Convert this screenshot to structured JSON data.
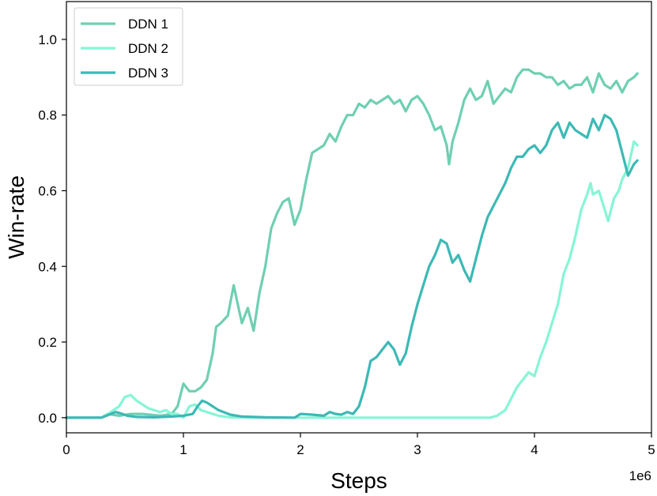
{
  "chart_data": {
    "type": "line",
    "xlabel": "Steps",
    "ylabel": "Win-rate",
    "x_offset_label": "1e6",
    "xlim": [
      0,
      5
    ],
    "ylim": [
      -0.04,
      1.1
    ],
    "xticks": [
      0,
      1,
      2,
      3,
      4,
      5
    ],
    "xtick_labels": [
      "0",
      "1",
      "2",
      "3",
      "4",
      "5"
    ],
    "yticks": [
      0.0,
      0.2,
      0.4,
      0.6,
      0.8,
      1.0
    ],
    "ytick_labels": [
      "0.0",
      "0.2",
      "0.4",
      "0.6",
      "0.8",
      "1.0"
    ],
    "grid": false,
    "legend_position": "top-left",
    "series": [
      {
        "name": "DDN 1",
        "color": "#6fcfb2",
        "points": [
          [
            0,
            0
          ],
          [
            0.3,
            0
          ],
          [
            0.35,
            0.01
          ],
          [
            0.45,
            0.005
          ],
          [
            0.55,
            0.01
          ],
          [
            0.65,
            0.01
          ],
          [
            0.8,
            0.005
          ],
          [
            0.9,
            0.01
          ],
          [
            0.95,
            0.03
          ],
          [
            1.0,
            0.09
          ],
          [
            1.05,
            0.07
          ],
          [
            1.1,
            0.07
          ],
          [
            1.15,
            0.08
          ],
          [
            1.2,
            0.1
          ],
          [
            1.25,
            0.17
          ],
          [
            1.28,
            0.24
          ],
          [
            1.32,
            0.25
          ],
          [
            1.38,
            0.27
          ],
          [
            1.43,
            0.35
          ],
          [
            1.45,
            0.32
          ],
          [
            1.5,
            0.25
          ],
          [
            1.55,
            0.29
          ],
          [
            1.6,
            0.23
          ],
          [
            1.65,
            0.33
          ],
          [
            1.7,
            0.4
          ],
          [
            1.75,
            0.5
          ],
          [
            1.8,
            0.54
          ],
          [
            1.85,
            0.57
          ],
          [
            1.9,
            0.58
          ],
          [
            1.95,
            0.51
          ],
          [
            2.0,
            0.55
          ],
          [
            2.05,
            0.63
          ],
          [
            2.1,
            0.7
          ],
          [
            2.15,
            0.71
          ],
          [
            2.2,
            0.72
          ],
          [
            2.25,
            0.75
          ],
          [
            2.3,
            0.73
          ],
          [
            2.35,
            0.77
          ],
          [
            2.4,
            0.8
          ],
          [
            2.45,
            0.8
          ],
          [
            2.5,
            0.83
          ],
          [
            2.55,
            0.82
          ],
          [
            2.6,
            0.84
          ],
          [
            2.65,
            0.83
          ],
          [
            2.7,
            0.84
          ],
          [
            2.75,
            0.85
          ],
          [
            2.8,
            0.83
          ],
          [
            2.85,
            0.84
          ],
          [
            2.9,
            0.81
          ],
          [
            2.95,
            0.84
          ],
          [
            3.0,
            0.85
          ],
          [
            3.05,
            0.83
          ],
          [
            3.1,
            0.8
          ],
          [
            3.15,
            0.76
          ],
          [
            3.2,
            0.77
          ],
          [
            3.25,
            0.72
          ],
          [
            3.27,
            0.67
          ],
          [
            3.3,
            0.73
          ],
          [
            3.35,
            0.78
          ],
          [
            3.4,
            0.84
          ],
          [
            3.45,
            0.87
          ],
          [
            3.5,
            0.84
          ],
          [
            3.55,
            0.85
          ],
          [
            3.6,
            0.89
          ],
          [
            3.65,
            0.83
          ],
          [
            3.7,
            0.85
          ],
          [
            3.75,
            0.87
          ],
          [
            3.8,
            0.86
          ],
          [
            3.85,
            0.9
          ],
          [
            3.9,
            0.92
          ],
          [
            3.95,
            0.92
          ],
          [
            4.0,
            0.91
          ],
          [
            4.05,
            0.91
          ],
          [
            4.1,
            0.9
          ],
          [
            4.15,
            0.9
          ],
          [
            4.2,
            0.88
          ],
          [
            4.25,
            0.89
          ],
          [
            4.3,
            0.87
          ],
          [
            4.35,
            0.88
          ],
          [
            4.4,
            0.88
          ],
          [
            4.45,
            0.9
          ],
          [
            4.5,
            0.86
          ],
          [
            4.55,
            0.91
          ],
          [
            4.6,
            0.88
          ],
          [
            4.65,
            0.87
          ],
          [
            4.7,
            0.89
          ],
          [
            4.75,
            0.86
          ],
          [
            4.8,
            0.89
          ],
          [
            4.85,
            0.9
          ],
          [
            4.88,
            0.91
          ]
        ]
      },
      {
        "name": "DDN 2",
        "color": "#86f5d6",
        "points": [
          [
            0,
            0
          ],
          [
            0.3,
            0
          ],
          [
            0.38,
            0.015
          ],
          [
            0.45,
            0.03
          ],
          [
            0.5,
            0.055
          ],
          [
            0.55,
            0.06
          ],
          [
            0.6,
            0.045
          ],
          [
            0.65,
            0.035
          ],
          [
            0.7,
            0.025
          ],
          [
            0.75,
            0.02
          ],
          [
            0.8,
            0.015
          ],
          [
            0.85,
            0.02
          ],
          [
            0.9,
            0.01
          ],
          [
            0.95,
            0.01
          ],
          [
            1.0,
            0.0
          ],
          [
            1.05,
            0.03
          ],
          [
            1.1,
            0.035
          ],
          [
            1.15,
            0.02
          ],
          [
            1.2,
            0.015
          ],
          [
            1.3,
            0.005
          ],
          [
            1.4,
            0.001
          ],
          [
            1.6,
            0
          ],
          [
            2.0,
            0
          ],
          [
            3.0,
            0
          ],
          [
            3.62,
            0
          ],
          [
            3.68,
            0.005
          ],
          [
            3.75,
            0.02
          ],
          [
            3.8,
            0.05
          ],
          [
            3.85,
            0.08
          ],
          [
            3.9,
            0.1
          ],
          [
            3.95,
            0.12
          ],
          [
            4.0,
            0.11
          ],
          [
            4.05,
            0.16
          ],
          [
            4.1,
            0.2
          ],
          [
            4.15,
            0.25
          ],
          [
            4.2,
            0.3
          ],
          [
            4.25,
            0.38
          ],
          [
            4.3,
            0.42
          ],
          [
            4.35,
            0.48
          ],
          [
            4.4,
            0.55
          ],
          [
            4.45,
            0.59
          ],
          [
            4.48,
            0.62
          ],
          [
            4.5,
            0.59
          ],
          [
            4.55,
            0.6
          ],
          [
            4.6,
            0.55
          ],
          [
            4.63,
            0.52
          ],
          [
            4.68,
            0.58
          ],
          [
            4.72,
            0.6
          ],
          [
            4.75,
            0.63
          ],
          [
            4.8,
            0.66
          ],
          [
            4.85,
            0.73
          ],
          [
            4.88,
            0.72
          ]
        ]
      },
      {
        "name": "DDN 3",
        "color": "#3cb9b5",
        "points": [
          [
            0,
            0
          ],
          [
            0.3,
            0
          ],
          [
            0.38,
            0.01
          ],
          [
            0.42,
            0.015
          ],
          [
            0.48,
            0.01
          ],
          [
            0.52,
            0.005
          ],
          [
            0.6,
            0.002
          ],
          [
            0.75,
            0.001
          ],
          [
            0.9,
            0.003
          ],
          [
            1.0,
            0.005
          ],
          [
            1.08,
            0.01
          ],
          [
            1.12,
            0.03
          ],
          [
            1.16,
            0.045
          ],
          [
            1.2,
            0.04
          ],
          [
            1.25,
            0.03
          ],
          [
            1.3,
            0.02
          ],
          [
            1.4,
            0.008
          ],
          [
            1.5,
            0.003
          ],
          [
            1.7,
            0.001
          ],
          [
            1.95,
            0
          ],
          [
            2.0,
            0.01
          ],
          [
            2.1,
            0.008
          ],
          [
            2.2,
            0.005
          ],
          [
            2.25,
            0.015
          ],
          [
            2.3,
            0.01
          ],
          [
            2.35,
            0.008
          ],
          [
            2.4,
            0.015
          ],
          [
            2.45,
            0.01
          ],
          [
            2.5,
            0.03
          ],
          [
            2.55,
            0.08
          ],
          [
            2.6,
            0.15
          ],
          [
            2.65,
            0.16
          ],
          [
            2.7,
            0.18
          ],
          [
            2.75,
            0.2
          ],
          [
            2.8,
            0.18
          ],
          [
            2.85,
            0.14
          ],
          [
            2.9,
            0.17
          ],
          [
            2.95,
            0.24
          ],
          [
            3.0,
            0.3
          ],
          [
            3.05,
            0.35
          ],
          [
            3.1,
            0.4
          ],
          [
            3.15,
            0.43
          ],
          [
            3.2,
            0.47
          ],
          [
            3.25,
            0.46
          ],
          [
            3.3,
            0.41
          ],
          [
            3.35,
            0.43
          ],
          [
            3.4,
            0.39
          ],
          [
            3.45,
            0.36
          ],
          [
            3.5,
            0.42
          ],
          [
            3.55,
            0.48
          ],
          [
            3.6,
            0.53
          ],
          [
            3.65,
            0.56
          ],
          [
            3.7,
            0.59
          ],
          [
            3.75,
            0.62
          ],
          [
            3.8,
            0.66
          ],
          [
            3.85,
            0.69
          ],
          [
            3.9,
            0.69
          ],
          [
            3.95,
            0.71
          ],
          [
            4.0,
            0.72
          ],
          [
            4.05,
            0.7
          ],
          [
            4.1,
            0.72
          ],
          [
            4.15,
            0.76
          ],
          [
            4.2,
            0.78
          ],
          [
            4.25,
            0.74
          ],
          [
            4.3,
            0.78
          ],
          [
            4.35,
            0.76
          ],
          [
            4.4,
            0.75
          ],
          [
            4.45,
            0.74
          ],
          [
            4.5,
            0.79
          ],
          [
            4.55,
            0.76
          ],
          [
            4.6,
            0.8
          ],
          [
            4.65,
            0.79
          ],
          [
            4.7,
            0.76
          ],
          [
            4.75,
            0.7
          ],
          [
            4.8,
            0.64
          ],
          [
            4.85,
            0.67
          ],
          [
            4.88,
            0.68
          ]
        ]
      }
    ]
  }
}
